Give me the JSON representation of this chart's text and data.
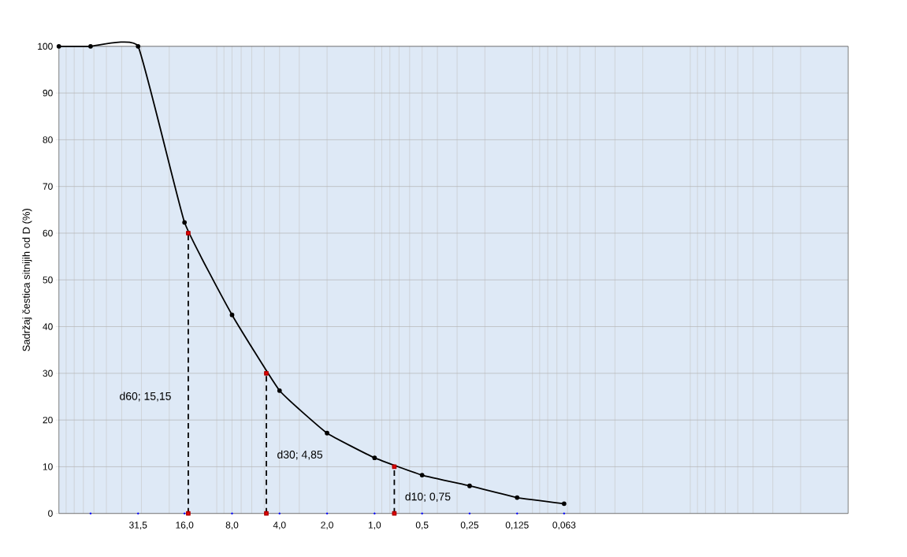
{
  "chart_data": {
    "type": "line",
    "ylabel": "Sadržaj čestica sitnijih od D (%)",
    "log": "x",
    "xlim": [
      100,
      0.001
    ],
    "ylim": [
      0,
      100
    ],
    "xticks": [
      {
        "value": 31.5,
        "label": "31,5"
      },
      {
        "value": 16,
        "label": "16,0"
      },
      {
        "value": 8,
        "label": "8,0"
      },
      {
        "value": 4,
        "label": "4,0"
      },
      {
        "value": 2,
        "label": "2,0"
      },
      {
        "value": 1,
        "label": "1,0"
      },
      {
        "value": 0.5,
        "label": "0,5"
      },
      {
        "value": 0.25,
        "label": "0,25"
      },
      {
        "value": 0.125,
        "label": "0,125"
      },
      {
        "value": 0.063,
        "label": "0,063"
      }
    ],
    "yticks": [
      0,
      10,
      20,
      30,
      40,
      50,
      60,
      70,
      80,
      90,
      100
    ],
    "grid": true,
    "series": [
      {
        "color": "#000000",
        "marker": "circle",
        "line_style": "solid",
        "x": [
          100,
          63,
          31.5,
          16,
          8,
          4,
          2,
          1,
          0.5,
          0.25,
          0.125,
          0.063
        ],
        "values": [
          100,
          100,
          100,
          62.3,
          42.5,
          26.3,
          17.2,
          11.9,
          8.2,
          5.9,
          3.4,
          2.1
        ]
      },
      {
        "type": "line",
        "color": "#000000",
        "marker": "square",
        "line_style": "dashed",
        "x": [
          15.15,
          15.15
        ],
        "values": [
          0,
          60
        ]
      },
      {
        "type": "line",
        "color": "#000000",
        "marker": "square",
        "line_style": "dashed",
        "x": [
          4.85,
          4.85
        ],
        "values": [
          0,
          30
        ]
      },
      {
        "type": "line",
        "color": "#000000",
        "marker": "square",
        "line_style": "dashed",
        "x": [
          0.75,
          0.75
        ],
        "values": [
          0,
          10
        ]
      },
      {
        "type": "scatter",
        "color": "#0000ff",
        "marker": "circle",
        "x": [
          63,
          31.5,
          16,
          8,
          4,
          2,
          1,
          0.5,
          0.25,
          0.125,
          0.063
        ],
        "values": [
          0,
          0,
          0,
          0,
          0,
          0,
          0,
          0,
          0,
          0,
          0
        ]
      }
    ],
    "annotations": [
      {
        "text": "d60; 15,15",
        "x": 15.15,
        "y": 25
      },
      {
        "text": "d30; 4,85",
        "x": 4.85,
        "y": 12.5
      },
      {
        "text": "d10; 0,75",
        "x": 0.75,
        "y": 3.5
      }
    ]
  }
}
